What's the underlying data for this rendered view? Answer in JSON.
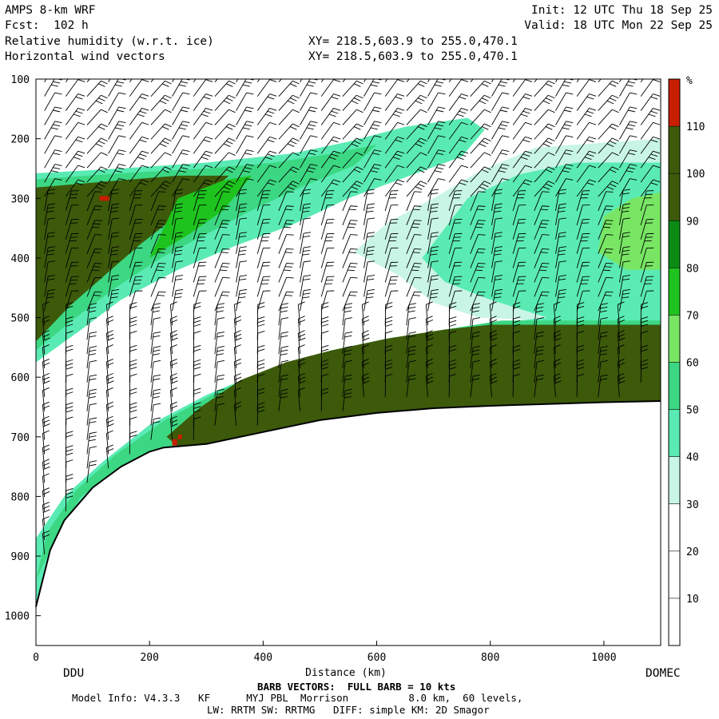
{
  "header": {
    "model_title": "AMPS 8-km WRF",
    "fcst": "Fcst:  102 h",
    "field_title": "Relative humidity (w.r.t. ice)",
    "vector_title": "Horizontal wind vectors",
    "xy_line1": "XY= 218.5,603.9 to 255.0,470.1",
    "xy_line2": "XY= 218.5,603.9 to 255.0,470.1",
    "init": "Init: 12 UTC Thu 18 Sep 25",
    "valid": "Valid: 18 UTC Mon 22 Sep 25"
  },
  "footer": {
    "start_label": "DDU",
    "end_label": "DOMEC",
    "barb_note": "BARB VECTORS:  FULL BARB = 10 kts",
    "model_info": "Model Info: V4.3.3   KF      MYJ PBL  Morrison          8.0 km,  60 levels,",
    "physics_info": "LW: RRTM SW: RRTMG   DIFF: simple KM: 2D Smagor"
  },
  "chart_data": {
    "type": "heatmap",
    "title": "Relative humidity (w.r.t. ice)",
    "xlabel": "Distance (km)",
    "ylabel": "",
    "xlim": [
      0,
      1100
    ],
    "ylim": [
      1050,
      100
    ],
    "x_ticks": [
      0,
      200,
      400,
      600,
      800,
      1000
    ],
    "y_ticks": [
      100,
      200,
      300,
      400,
      500,
      600,
      700,
      800,
      900,
      1000
    ],
    "colorbar": {
      "unit": "%",
      "levels": [
        10,
        20,
        30,
        40,
        50,
        60,
        70,
        80,
        90,
        100,
        110
      ],
      "colors": [
        "#ffffff",
        "#ffffff",
        "#ffffff",
        "#c8f5e6",
        "#5aebb4",
        "#3cd782",
        "#78e664",
        "#1ec31e",
        "#0a8c14",
        "#3c5a0a",
        "#3c5a0a",
        "#c81e00"
      ]
    },
    "terrain": {
      "x": [
        0,
        25,
        50,
        100,
        150,
        200,
        225,
        300,
        400,
        500,
        600,
        700,
        800,
        900,
        1000,
        1100
      ],
      "p": [
        985,
        890,
        840,
        785,
        750,
        725,
        718,
        712,
        692,
        672,
        660,
        652,
        648,
        645,
        642,
        640
      ]
    },
    "rh_zones": [
      {
        "name": "upper_moist_layer",
        "rh": 100
      },
      {
        "name": "lower_moist_layer",
        "rh": 100
      },
      {
        "name": "dry_slot",
        "rh": 20
      }
    ]
  }
}
